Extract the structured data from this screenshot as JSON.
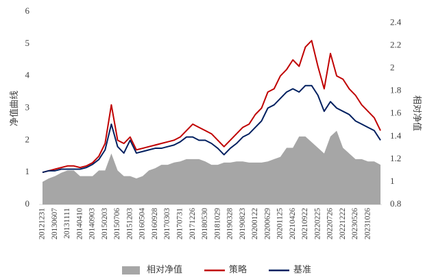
{
  "chart_data": {
    "type": "line",
    "y_label": "净值曲线",
    "y2_label": "相对净值",
    "categories": [
      "20121231",
      null,
      "20130607",
      null,
      "20131111",
      null,
      "20140410",
      null,
      "20140903",
      null,
      "20150203",
      null,
      "20150706",
      null,
      "20151203",
      null,
      "20160504",
      null,
      "20160928",
      null,
      "20170303",
      null,
      "20170731",
      null,
      "20171226",
      null,
      "20180530",
      null,
      "20181029",
      null,
      "20190328",
      null,
      "20190823",
      null,
      "20200122",
      null,
      "20200629",
      null,
      "20201125",
      null,
      "20210426",
      null,
      "20210922",
      null,
      "20220225",
      null,
      "20220726",
      null,
      "20221222",
      null,
      "20230526",
      null,
      "20231026",
      null,
      null
    ],
    "series": [
      {
        "name": "相对净值",
        "type": "area",
        "axis": "y2",
        "color": "#a6a6a6",
        "values": [
          1.0,
          1.03,
          1.05,
          1.08,
          1.1,
          1.1,
          1.05,
          1.05,
          1.05,
          1.1,
          1.1,
          1.25,
          1.1,
          1.05,
          1.05,
          1.03,
          1.05,
          1.1,
          1.12,
          1.15,
          1.15,
          1.17,
          1.18,
          1.2,
          1.2,
          1.2,
          1.18,
          1.15,
          1.15,
          1.17,
          1.17,
          1.18,
          1.18,
          1.17,
          1.17,
          1.17,
          1.18,
          1.2,
          1.22,
          1.3,
          1.3,
          1.4,
          1.4,
          1.35,
          1.3,
          1.25,
          1.4,
          1.45,
          1.3,
          1.25,
          1.2,
          1.2,
          1.18,
          1.18,
          1.15
        ]
      },
      {
        "name": "策略",
        "type": "line",
        "color": "#c00000",
        "values": [
          1.0,
          1.05,
          1.1,
          1.15,
          1.2,
          1.2,
          1.15,
          1.2,
          1.3,
          1.5,
          1.9,
          3.1,
          2.0,
          1.9,
          2.1,
          1.7,
          1.75,
          1.8,
          1.85,
          1.9,
          1.95,
          2.0,
          2.1,
          2.3,
          2.5,
          2.4,
          2.3,
          2.2,
          2.0,
          1.8,
          2.0,
          2.2,
          2.4,
          2.5,
          2.8,
          3.0,
          3.5,
          3.6,
          4.0,
          4.2,
          4.5,
          4.3,
          4.9,
          5.1,
          4.3,
          3.6,
          4.7,
          4.0,
          3.9,
          3.6,
          3.4,
          3.1,
          2.9,
          2.7,
          2.3
        ]
      },
      {
        "name": "基准",
        "type": "line",
        "color": "#002060",
        "values": [
          1.0,
          1.05,
          1.05,
          1.1,
          1.1,
          1.1,
          1.1,
          1.15,
          1.25,
          1.4,
          1.7,
          2.5,
          1.8,
          1.6,
          2.0,
          1.6,
          1.65,
          1.7,
          1.75,
          1.75,
          1.8,
          1.85,
          1.95,
          2.1,
          2.1,
          2.0,
          2.0,
          1.9,
          1.75,
          1.55,
          1.75,
          1.9,
          2.1,
          2.2,
          2.4,
          2.6,
          3.0,
          3.1,
          3.3,
          3.5,
          3.6,
          3.5,
          3.7,
          3.7,
          3.4,
          2.9,
          3.2,
          3.0,
          2.9,
          2.8,
          2.6,
          2.5,
          2.4,
          2.3,
          2.0
        ]
      }
    ],
    "ylim": [
      0,
      6
    ],
    "yticks": [
      0,
      1,
      2,
      3,
      4,
      5,
      6
    ],
    "y2lim": [
      0.8,
      2.5
    ],
    "y2ticks": [
      0.8,
      1,
      1.2,
      1.4,
      1.6,
      1.8,
      2,
      2.2,
      2.4
    ],
    "legend": "bottom"
  }
}
